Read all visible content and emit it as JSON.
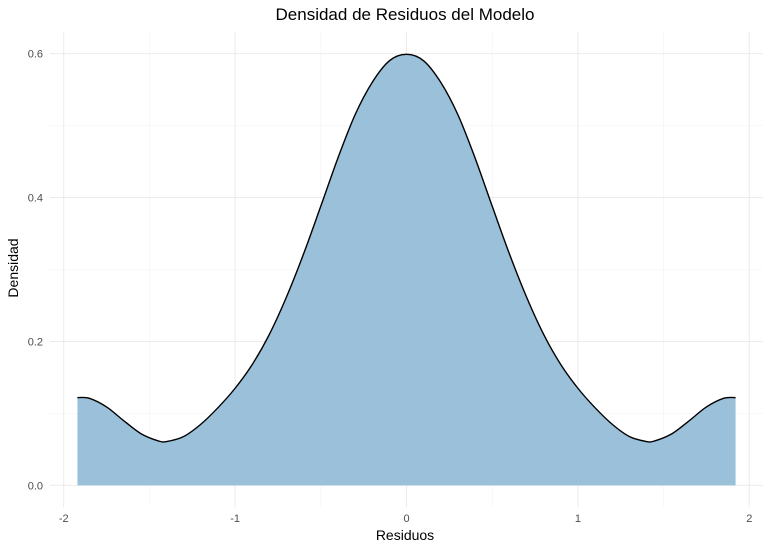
{
  "chart_data": {
    "type": "area",
    "title": "Densidad de Residuos del Modelo",
    "xlabel": "Residuos",
    "ylabel": "Densidad",
    "xlim": [
      -2.08,
      2.08
    ],
    "ylim": [
      -0.03,
      0.63
    ],
    "x_ticks": [
      -2,
      -1,
      0,
      1,
      2
    ],
    "x_tick_labels": [
      "-2",
      "-1",
      "0",
      "1",
      "2"
    ],
    "y_ticks": [
      0.0,
      0.2,
      0.4,
      0.6
    ],
    "y_tick_labels": [
      "0.0",
      "0.2",
      "0.4",
      "0.6"
    ],
    "grid": true,
    "fill_color": "#9ac1d9",
    "line_color": "#000000",
    "series": [
      {
        "x": [
          -1.92,
          -1.85,
          -1.75,
          -1.65,
          -1.55,
          -1.45,
          -1.4,
          -1.3,
          -1.2,
          -1.1,
          -1.0,
          -0.9,
          -0.8,
          -0.7,
          -0.6,
          -0.5,
          -0.4,
          -0.3,
          -0.2,
          -0.1,
          0.0,
          0.1,
          0.2,
          0.3,
          0.4,
          0.5,
          0.6,
          0.7,
          0.8,
          0.9,
          1.0,
          1.1,
          1.2,
          1.3,
          1.4,
          1.45,
          1.55,
          1.65,
          1.75,
          1.85,
          1.92
        ],
        "values": [
          0.122,
          0.121,
          0.109,
          0.09,
          0.072,
          0.062,
          0.061,
          0.068,
          0.085,
          0.108,
          0.135,
          0.168,
          0.21,
          0.262,
          0.322,
          0.388,
          0.455,
          0.515,
          0.56,
          0.59,
          0.599,
          0.59,
          0.56,
          0.515,
          0.455,
          0.388,
          0.322,
          0.262,
          0.21,
          0.168,
          0.135,
          0.108,
          0.085,
          0.068,
          0.061,
          0.062,
          0.072,
          0.09,
          0.109,
          0.121,
          0.122
        ]
      }
    ]
  }
}
